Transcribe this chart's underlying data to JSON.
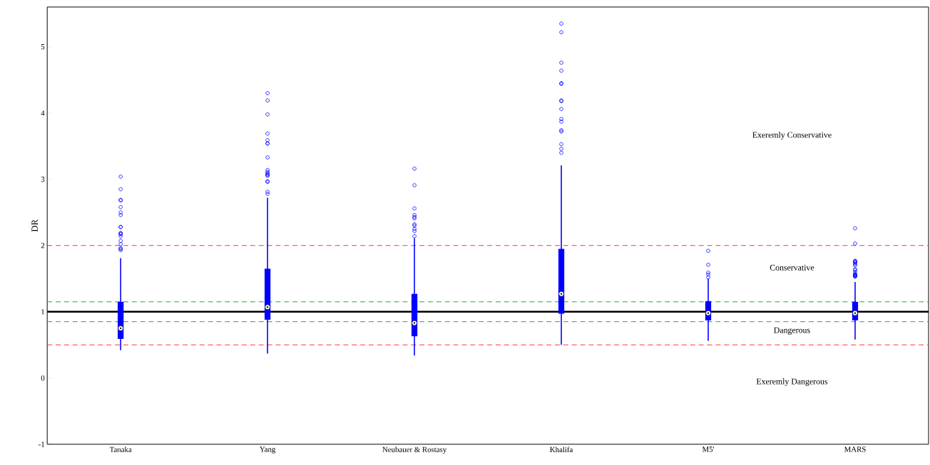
{
  "chart_data": {
    "type": "box",
    "ylabel": "DR",
    "categories": [
      "Tanaka",
      "Yang",
      "Neubauer & Rostasy",
      "Khalifa",
      "M5'",
      "MARS"
    ],
    "ylim": [
      -1,
      5.6
    ],
    "yticks": [
      -1,
      0,
      1,
      2,
      3,
      4,
      5
    ],
    "grid": false,
    "marker": "circle",
    "series": [
      {
        "color": "#0000ff",
        "boxes": [
          {
            "low": 0.42,
            "q1": 0.59,
            "median": 0.75,
            "q3": 1.15,
            "high": 1.81,
            "outliers": [
              3.04,
              2.85,
              2.69,
              2.68,
              2.58,
              2.5,
              2.46,
              2.28,
              2.28,
              2.19,
              2.18,
              2.17,
              2.14,
              2.07,
              2.02,
              1.96,
              1.95,
              1.93
            ]
          },
          {
            "low": 0.37,
            "q1": 0.88,
            "median": 1.07,
            "q3": 1.65,
            "high": 2.72,
            "outliers": [
              4.3,
              4.19,
              3.98,
              3.69,
              3.59,
              3.54,
              3.54,
              3.33,
              3.14,
              3.11,
              3.09,
              3.07,
              3.07,
              3.05,
              2.97,
              2.96,
              2.81,
              2.78
            ]
          },
          {
            "low": 0.34,
            "q1": 0.63,
            "median": 0.83,
            "q3": 1.27,
            "high": 2.11,
            "outliers": [
              3.16,
              2.91,
              2.56,
              2.46,
              2.43,
              2.41,
              2.32,
              2.3,
              2.25,
              2.22,
              2.14
            ]
          },
          {
            "low": 0.5,
            "q1": 0.97,
            "median": 1.27,
            "q3": 1.95,
            "high": 3.21,
            "outliers": [
              5.35,
              5.22,
              4.76,
              4.64,
              4.45,
              4.44,
              4.19,
              4.18,
              4.06,
              3.91,
              3.87,
              3.74,
              3.72,
              3.53,
              3.46,
              3.4
            ]
          },
          {
            "low": 0.56,
            "q1": 0.87,
            "median": 0.98,
            "q3": 1.16,
            "high": 1.5,
            "outliers": [
              1.92,
              1.71,
              1.59,
              1.56,
              1.52
            ]
          },
          {
            "low": 0.58,
            "q1": 0.87,
            "median": 0.98,
            "q3": 1.15,
            "high": 1.45,
            "outliers": [
              2.26,
              2.03,
              1.77,
              1.76,
              1.75,
              1.74,
              1.72,
              1.7,
              1.64,
              1.63,
              1.6,
              1.57,
              1.56,
              1.55,
              1.55,
              1.54,
              1.54,
              1.53
            ]
          }
        ]
      }
    ],
    "ref_lines": [
      {
        "axis": "y",
        "value": 1,
        "color": "#000000",
        "line_style": "solid"
      },
      {
        "axis": "y",
        "value": 1.15,
        "color": "#008000",
        "line_style": "dashed"
      },
      {
        "axis": "y",
        "value": 0.85,
        "color": "#008000",
        "line_style": "dashed"
      },
      {
        "axis": "y",
        "value": 2,
        "color": "#ff0000",
        "line_style": "dashed"
      },
      {
        "axis": "y",
        "value": 0.5,
        "color": "#ff0000",
        "line_style": "dashed"
      }
    ],
    "annotations": [
      "Exeremly Conservative",
      "Conservative",
      "Dangerous",
      "Exeremly Dangerous"
    ]
  }
}
